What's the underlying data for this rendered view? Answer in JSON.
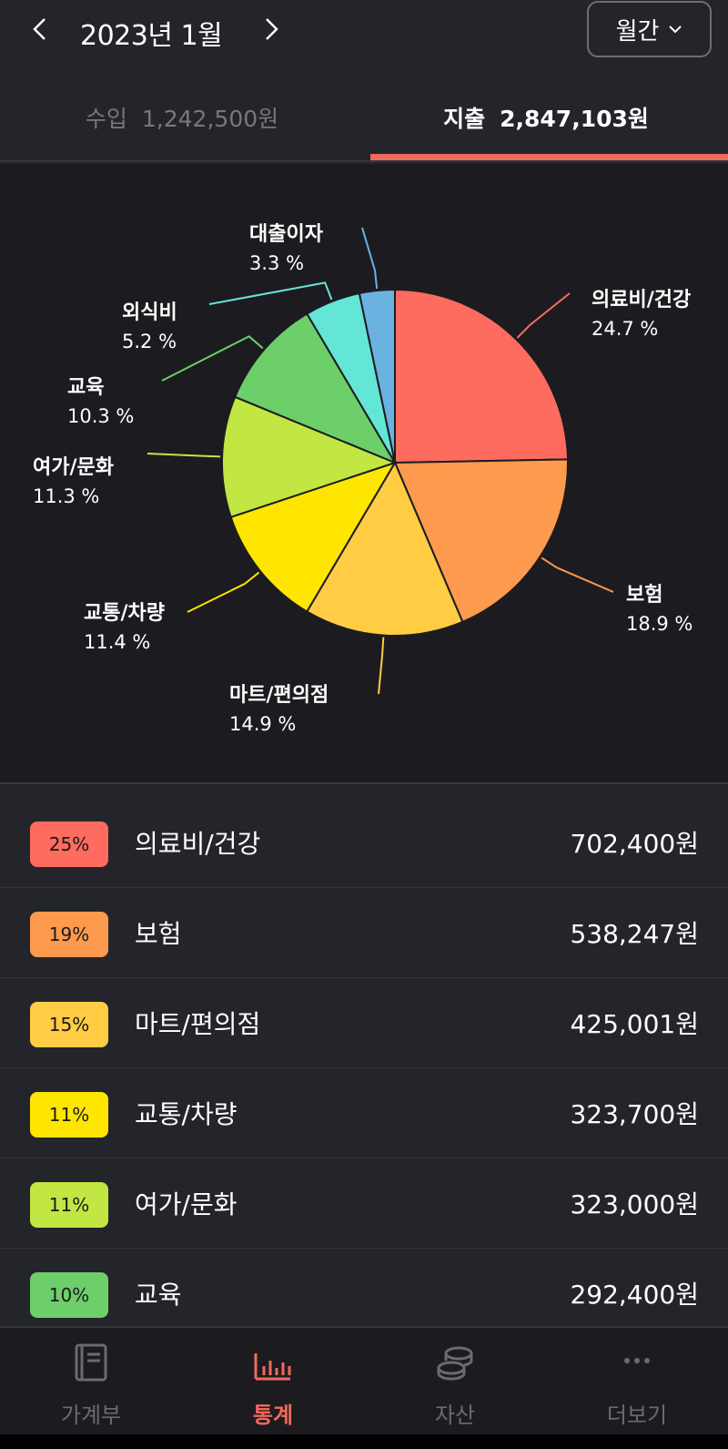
{
  "header": {
    "month": "2023년 1월",
    "period": "월간"
  },
  "tabs": {
    "income": {
      "label": "수입",
      "amount": "1,242,500원"
    },
    "expense": {
      "label": "지출",
      "amount": "2,847,103원"
    }
  },
  "colors": {
    "accent": "#f06a5c",
    "background": "#24252a",
    "chart_bg": "#1c1c20"
  },
  "chart_data": {
    "type": "pie",
    "slices": [
      {
        "label": "의료비/건강",
        "pct_text": "24.7 %",
        "value": 24.7,
        "color": "#fe6b5f"
      },
      {
        "label": "보험",
        "pct_text": "18.9 %",
        "value": 18.9,
        "color": "#fe9a4d"
      },
      {
        "label": "마트/편의점",
        "pct_text": "14.9 %",
        "value": 14.9,
        "color": "#ffcc44"
      },
      {
        "label": "교통/차량",
        "pct_text": "11.4 %",
        "value": 11.4,
        "color": "#ffe600"
      },
      {
        "label": "여가/문화",
        "pct_text": "11.3 %",
        "value": 11.3,
        "color": "#c2e642"
      },
      {
        "label": "교육",
        "pct_text": "10.3 %",
        "value": 10.3,
        "color": "#6dcf6a"
      },
      {
        "label": "외식비",
        "pct_text": "5.2 %",
        "value": 5.2,
        "color": "#63e6d6"
      },
      {
        "label": "대출이자",
        "pct_text": "3.3 %",
        "value": 3.3,
        "color": "#6ab2e0"
      }
    ]
  },
  "list": [
    {
      "badge": "25%",
      "name": "의료비/건강",
      "amount": "702,400원",
      "color": "#fe6b5f"
    },
    {
      "badge": "19%",
      "name": "보험",
      "amount": "538,247원",
      "color": "#fe9a4d"
    },
    {
      "badge": "15%",
      "name": "마트/편의점",
      "amount": "425,001원",
      "color": "#ffcc44"
    },
    {
      "badge": "11%",
      "name": "교통/차량",
      "amount": "323,700원",
      "color": "#ffe600"
    },
    {
      "badge": "11%",
      "name": "여가/문화",
      "amount": "323,000원",
      "color": "#c2e642"
    },
    {
      "badge": "10%",
      "name": "교육",
      "amount": "292,400원",
      "color": "#6dcf6a"
    }
  ],
  "bottom_nav": [
    {
      "label": "가계부",
      "icon": "book-icon"
    },
    {
      "label": "통계",
      "icon": "bar-chart-icon"
    },
    {
      "label": "자산",
      "icon": "coins-icon"
    },
    {
      "label": "더보기",
      "icon": "more-icon"
    }
  ]
}
